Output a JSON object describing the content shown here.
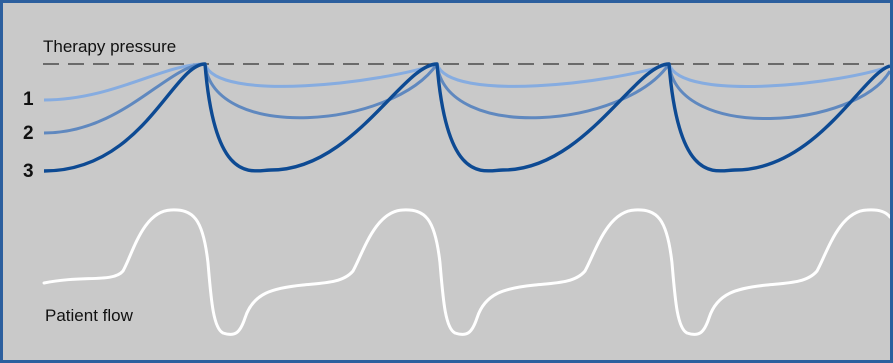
{
  "diagram": {
    "therapy_pressure_label": "Therapy pressure",
    "patient_flow_label": "Patient flow",
    "levels": [
      {
        "label": "1",
        "color": "#86ace0"
      },
      {
        "label": "2",
        "color": "#5f88bf"
      },
      {
        "label": "3",
        "color": "#0d4a93"
      }
    ],
    "colors": {
      "background": "#c9c9c9",
      "border": "#2c5f9e",
      "dashed_line": "#333333",
      "flow_curve": "#ffffff"
    }
  }
}
